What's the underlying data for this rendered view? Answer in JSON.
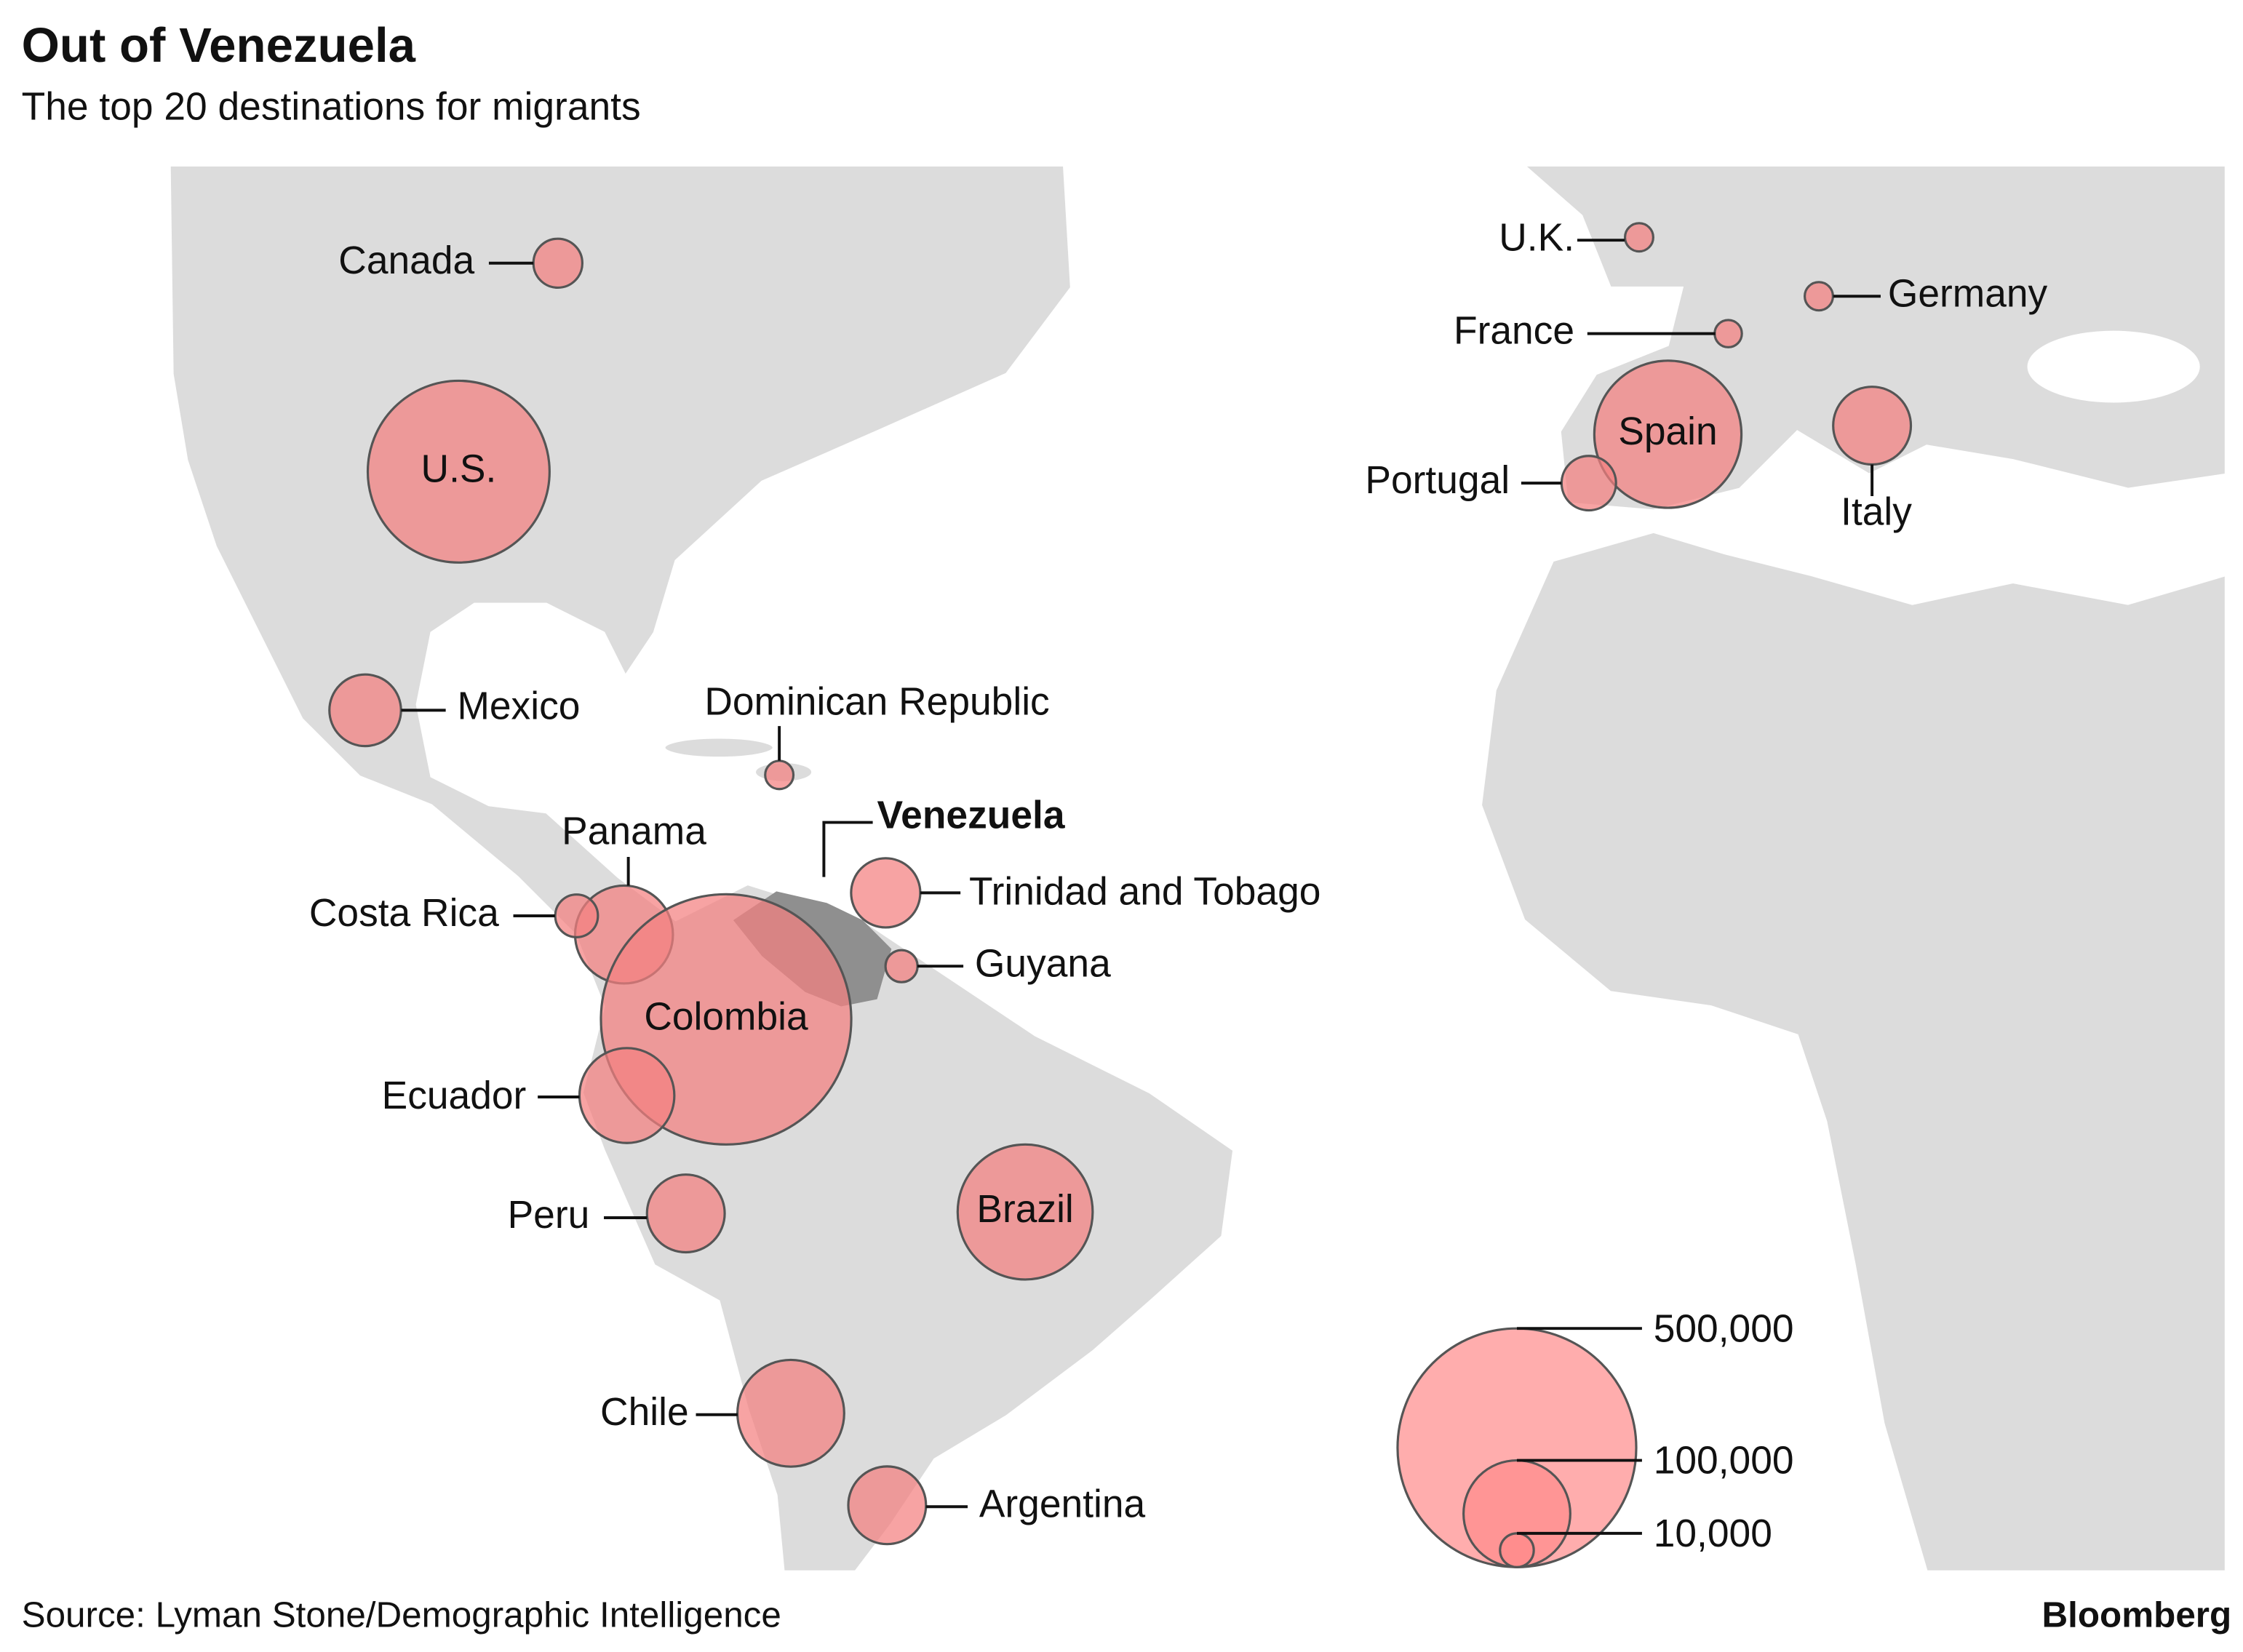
{
  "header": {
    "title": "Out of Venezuela",
    "subtitle": "The top 20 destinations for migrants"
  },
  "origin": "Venezuela",
  "bubble_color": "#f47f7f",
  "destinations": [
    {
      "name": "Canada",
      "value": 21000
    },
    {
      "name": "U.S.",
      "value": 290000
    },
    {
      "name": "Mexico",
      "value": 45000
    },
    {
      "name": "Dominican Republic",
      "value": 7000
    },
    {
      "name": "Panama",
      "value": 84000
    },
    {
      "name": "Costa Rica",
      "value": 16000
    },
    {
      "name": "Colombia",
      "value": 550000
    },
    {
      "name": "Trinidad and Tobago",
      "value": 42000
    },
    {
      "name": "Guyana",
      "value": 9000
    },
    {
      "name": "Ecuador",
      "value": 79000
    },
    {
      "name": "Peru",
      "value": 53000
    },
    {
      "name": "Brazil",
      "value": 160000
    },
    {
      "name": "Chile",
      "value": 100000
    },
    {
      "name": "Argentina",
      "value": 53000
    },
    {
      "name": "U.K.",
      "value": 7000
    },
    {
      "name": "Germany",
      "value": 7000
    },
    {
      "name": "France",
      "value": 6500
    },
    {
      "name": "Spain",
      "value": 190000
    },
    {
      "name": "Portugal",
      "value": 26000
    },
    {
      "name": "Italy",
      "value": 53000
    }
  ],
  "legend": {
    "color": "#ff8a8a",
    "values": [
      {
        "value": 500000,
        "label": "500,000"
      },
      {
        "value": 100000,
        "label": "100,000"
      },
      {
        "value": 10000,
        "label": "10,000"
      }
    ]
  },
  "footer": {
    "source": "Source: Lyman Stone/Demographic Intelligence",
    "brand": "Bloomberg"
  }
}
